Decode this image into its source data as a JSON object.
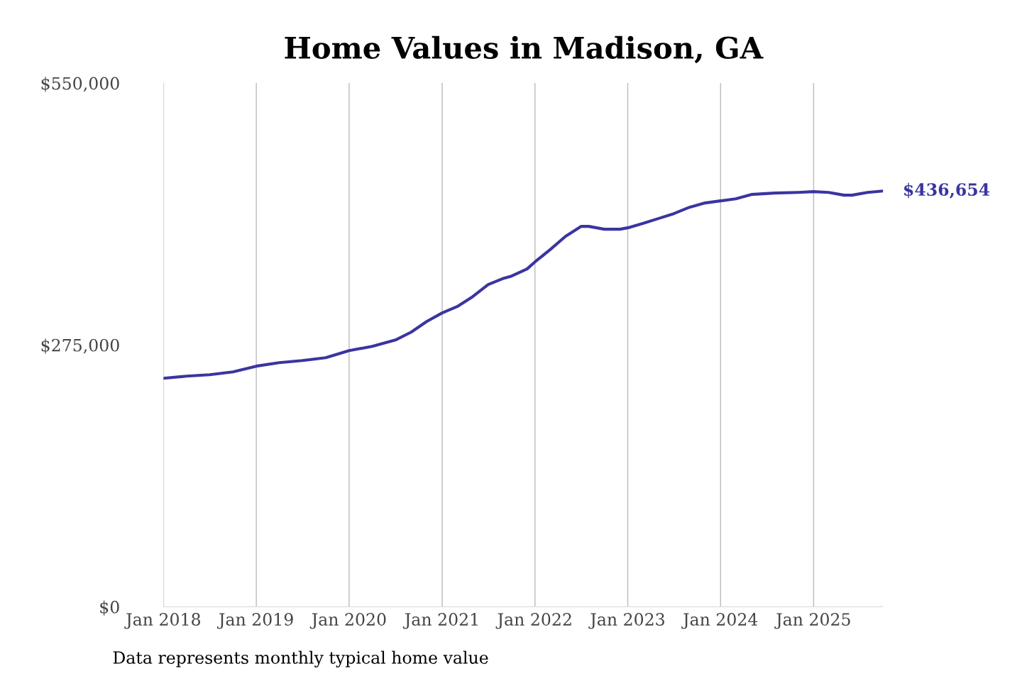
{
  "chart_data": {
    "type": "line",
    "title": "Home Values in Madison, GA",
    "x": [
      "2018-01",
      "2018-04",
      "2018-07",
      "2018-10",
      "2019-01",
      "2019-04",
      "2019-07",
      "2019-10",
      "2020-01",
      "2020-04",
      "2020-07",
      "2020-09",
      "2020-11",
      "2021-01",
      "2021-03",
      "2021-05",
      "2021-07",
      "2021-09",
      "2021-10",
      "2021-12",
      "2022-01",
      "2022-03",
      "2022-05",
      "2022-07",
      "2022-08",
      "2022-10",
      "2022-12",
      "2023-01",
      "2023-03",
      "2023-05",
      "2023-07",
      "2023-09",
      "2023-11",
      "2024-01",
      "2024-03",
      "2024-05",
      "2024-08",
      "2024-11",
      "2025-01",
      "2025-03",
      "2025-05",
      "2025-06",
      "2025-08",
      "2025-10"
    ],
    "series": [
      {
        "color": "#3a35a0",
        "values": [
          240000,
          242200,
          243700,
          246700,
          252700,
          256400,
          258600,
          261600,
          269000,
          273500,
          280200,
          288400,
          299600,
          308600,
          315300,
          325700,
          338400,
          345100,
          347300,
          354800,
          362200,
          374900,
          389000,
          399500,
          399500,
          396500,
          396500,
          398000,
          402500,
          407700,
          412900,
          419600,
          424100,
          426300,
          428500,
          433000,
          434500,
          435200,
          436000,
          435200,
          432300,
          432300,
          435200,
          436654
        ]
      }
    ],
    "xticks": [
      {
        "value": "2018-01",
        "label": "Jan 2018"
      },
      {
        "value": "2019-01",
        "label": "Jan 2019"
      },
      {
        "value": "2020-01",
        "label": "Jan 2020"
      },
      {
        "value": "2021-01",
        "label": "Jan 2021"
      },
      {
        "value": "2022-01",
        "label": "Jan 2022"
      },
      {
        "value": "2023-01",
        "label": "Jan 2023"
      },
      {
        "value": "2024-01",
        "label": "Jan 2024"
      },
      {
        "value": "2025-01",
        "label": "Jan 2025"
      }
    ],
    "ylim": [
      0,
      550000
    ],
    "yticks": [
      {
        "value": 0,
        "label": "$0"
      },
      {
        "value": 275000,
        "label": "$275,000"
      },
      {
        "value": 550000,
        "label": "$550,000"
      }
    ],
    "xlim": [
      "2018-01",
      "2025-10"
    ],
    "grid": "x",
    "marker": "none",
    "line_style": "solid",
    "annotations": [
      {
        "text": "$436,654",
        "x": "2025-10",
        "y": 436654
      },
      "Data represents monthly typical home value"
    ]
  }
}
